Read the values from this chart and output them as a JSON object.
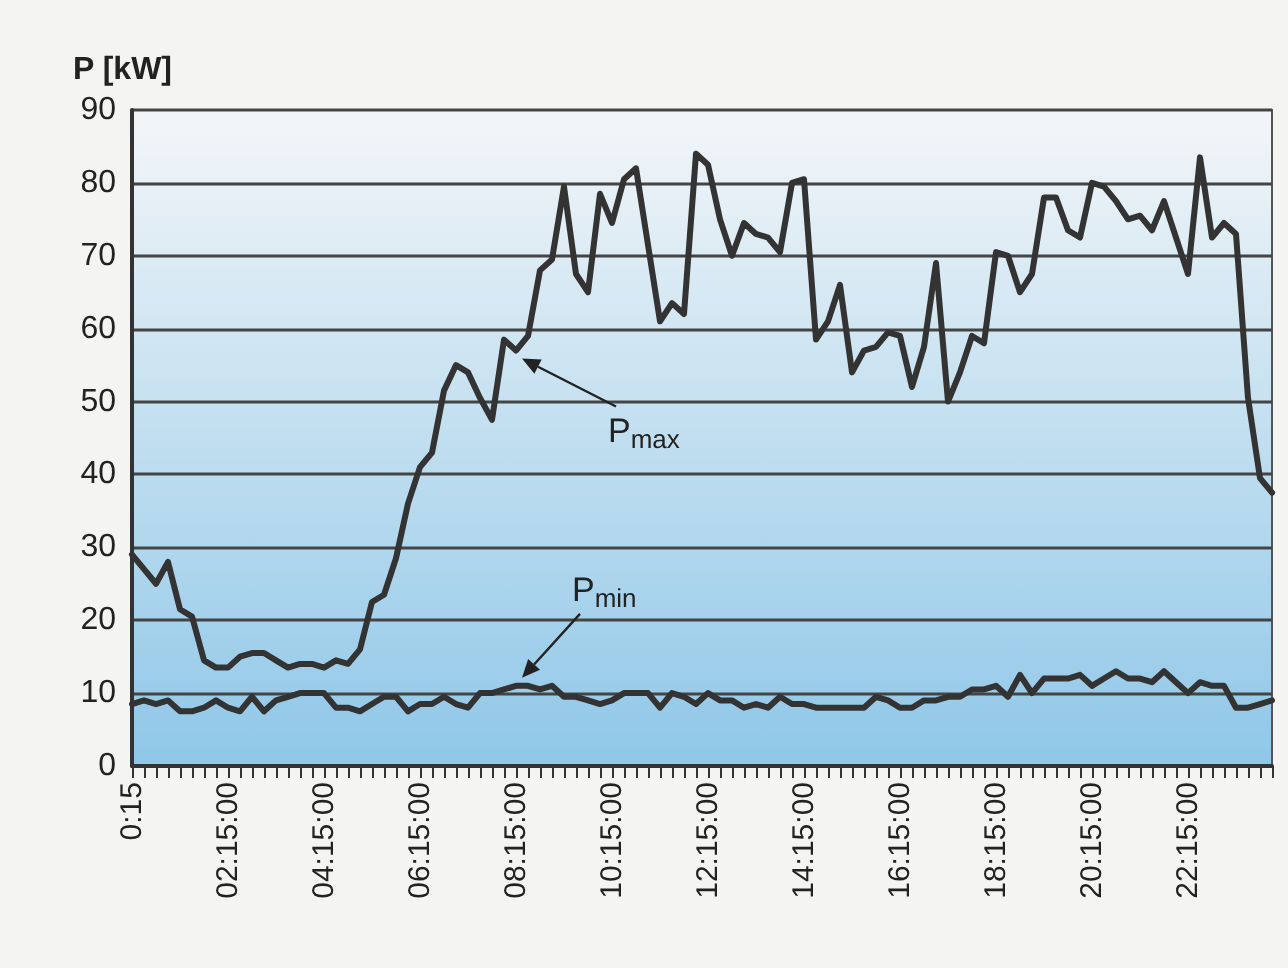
{
  "chart_data": {
    "type": "line",
    "ylabel": "P [kW]",
    "categories": [
      "0:15",
      null,
      null,
      null,
      null,
      null,
      null,
      null,
      "02:15:00",
      null,
      null,
      null,
      null,
      null,
      null,
      null,
      "04:15:00",
      null,
      null,
      null,
      null,
      null,
      null,
      null,
      "06:15:00",
      null,
      null,
      null,
      null,
      null,
      null,
      null,
      "08:15:00",
      null,
      null,
      null,
      null,
      null,
      null,
      null,
      "10:15:00",
      null,
      null,
      null,
      null,
      null,
      null,
      null,
      "12:15:00",
      null,
      null,
      null,
      null,
      null,
      null,
      null,
      "14:15:00",
      null,
      null,
      null,
      null,
      null,
      null,
      null,
      "16:15:00",
      null,
      null,
      null,
      null,
      null,
      null,
      null,
      "18:15:00",
      null,
      null,
      null,
      null,
      null,
      null,
      null,
      "20:15:00",
      null,
      null,
      null,
      null,
      null,
      null,
      null,
      "22:15:00",
      null,
      null,
      null,
      null,
      null,
      null,
      null
    ],
    "series": [
      {
        "name": "P$_{max}$",
        "color": "#333333",
        "values": [
          29,
          27,
          25,
          28,
          21.5,
          20.5,
          14.5,
          13.5,
          13.5,
          15,
          15.5,
          15.5,
          14.5,
          13.5,
          14,
          14,
          13.5,
          14.5,
          14,
          16,
          22.5,
          23.5,
          28.5,
          36,
          41,
          43,
          51.5,
          55,
          54,
          50.5,
          47.5,
          58.5,
          57,
          59,
          68,
          69.5,
          79.5,
          67.5,
          65,
          78.5,
          74.5,
          80.5,
          82,
          71.5,
          61,
          63.5,
          62,
          84,
          82.5,
          75,
          70,
          74.5,
          73,
          72.5,
          70.5,
          80,
          80.5,
          58.5,
          61,
          66,
          54,
          57,
          57.5,
          59.5,
          59,
          52,
          57.5,
          69,
          50,
          54,
          59,
          58,
          70.5,
          70,
          65,
          67.5,
          78,
          78,
          73.5,
          72.5,
          80,
          79.5,
          77.5,
          75,
          75.5,
          73.5,
          77.5,
          72.5,
          67.5,
          83.5,
          72.5,
          74.5,
          73,
          50.5,
          39.5,
          37.5
        ]
      },
      {
        "name": "P$_{min}$",
        "color": "#333333",
        "values": [
          8.5,
          9,
          8.5,
          9,
          7.5,
          7.5,
          8,
          9,
          8,
          7.5,
          9.5,
          7.5,
          9,
          9.5,
          10,
          10,
          10,
          8,
          8,
          7.5,
          8.5,
          9.5,
          9.5,
          7.5,
          8.5,
          8.5,
          9.5,
          8.5,
          8,
          10,
          10,
          10.5,
          11,
          11,
          10.5,
          11,
          9.5,
          9.5,
          9,
          8.5,
          9,
          10,
          10,
          10,
          8,
          10,
          9.5,
          8.5,
          10,
          9,
          9,
          8,
          8.5,
          8,
          9.5,
          8.5,
          8.5,
          8,
          8,
          8,
          8,
          8,
          9.5,
          9,
          8,
          8,
          9,
          9,
          9.5,
          9.5,
          10.5,
          10.5,
          11,
          9.5,
          12.5,
          10,
          12,
          12,
          12,
          12.5,
          11,
          12,
          13,
          12,
          12,
          11.5,
          13,
          11.5,
          10,
          11.5,
          11,
          11,
          8,
          8,
          8.5,
          9
        ]
      }
    ],
    "ylim": [
      0,
      90
    ],
    "yticks": [
      0,
      10,
      20,
      30,
      40,
      50,
      60,
      70,
      80,
      90
    ],
    "grid": "y",
    "legend": false,
    "marker": "none",
    "line_style": "solid"
  }
}
